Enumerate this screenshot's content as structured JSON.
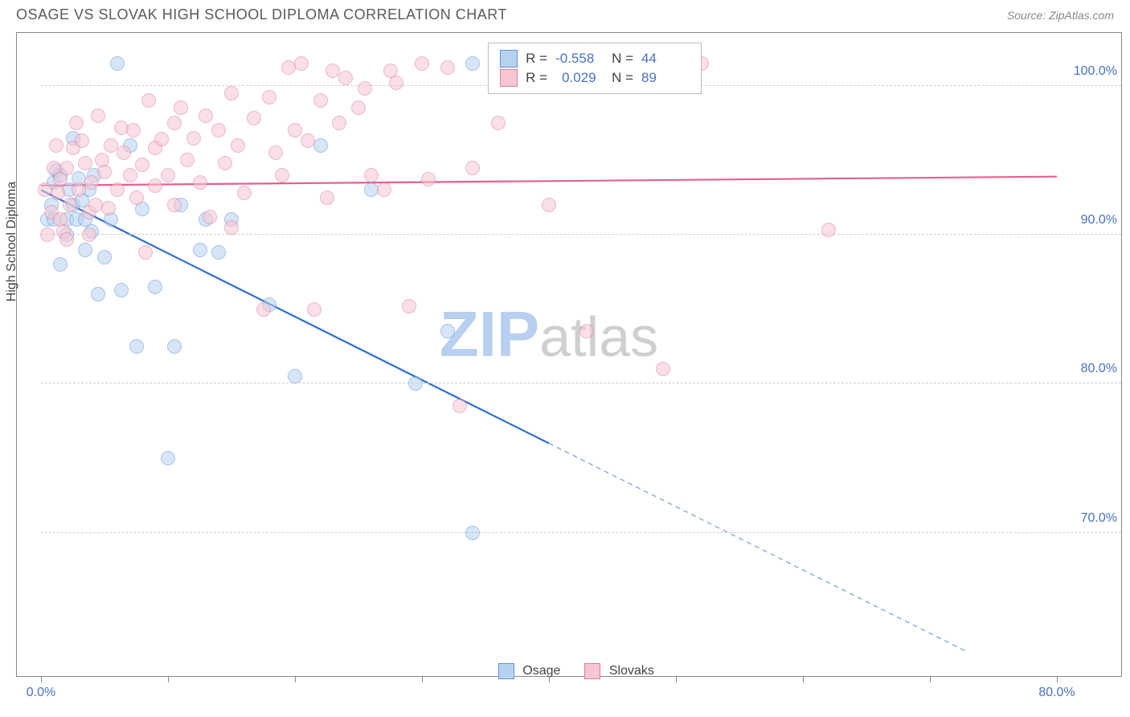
{
  "title": "OSAGE VS SLOVAK HIGH SCHOOL DIPLOMA CORRELATION CHART",
  "source": "Source: ZipAtlas.com",
  "ylabel": "High School Diploma",
  "watermark": {
    "part1": "ZIP",
    "part2": "atlas",
    "color1": "#b9cfef",
    "color2": "#cfcfcf"
  },
  "chart": {
    "type": "scatter",
    "xlim": [
      0,
      80
    ],
    "ylim": [
      62,
      103
    ],
    "xtick_positions": [
      0,
      10,
      20,
      30,
      40,
      50,
      60,
      70,
      80
    ],
    "xtick_labels_shown": {
      "0": "0.0%",
      "80": "80.0%"
    },
    "ytick_positions": [
      70,
      80,
      90,
      100
    ],
    "ytick_labels": {
      "70": "70.0%",
      "80": "80.0%",
      "90": "90.0%",
      "100": "100.0%"
    },
    "grid_color": "#cccccc",
    "background_color": "#ffffff",
    "border_color": "#888888",
    "marker_radius": 9,
    "marker_opacity": 0.55,
    "marker_stroke_width": 1.2,
    "series": [
      {
        "name": "Osage",
        "label": "Osage",
        "fill": "#b7d2f1",
        "stroke": "#5f93d6",
        "stats": {
          "R": "-0.558",
          "N": "44"
        },
        "trend": {
          "x1": 0,
          "y1": 93,
          "x2_solid": 40,
          "y2_solid": 76,
          "x2_dash": 80,
          "y2_dash": 59,
          "color": "#2f6fd0",
          "width": 2.2
        },
        "points": [
          [
            0.5,
            91
          ],
          [
            0.8,
            92
          ],
          [
            1,
            93.5
          ],
          [
            1,
            91
          ],
          [
            1.2,
            94.3
          ],
          [
            1.5,
            88
          ],
          [
            1.5,
            94
          ],
          [
            2,
            91
          ],
          [
            2,
            90
          ],
          [
            2.2,
            93
          ],
          [
            2.5,
            96.5
          ],
          [
            2.5,
            92
          ],
          [
            2.8,
            91
          ],
          [
            3,
            93.8
          ],
          [
            3.2,
            92.3
          ],
          [
            3.5,
            91
          ],
          [
            3.5,
            89
          ],
          [
            3.8,
            93
          ],
          [
            4,
            90.2
          ],
          [
            4.2,
            94
          ],
          [
            4.5,
            86
          ],
          [
            5,
            88.5
          ],
          [
            5.5,
            91
          ],
          [
            6,
            101.5
          ],
          [
            6.3,
            86.3
          ],
          [
            7,
            96
          ],
          [
            7.5,
            82.5
          ],
          [
            8,
            91.7
          ],
          [
            9,
            86.5
          ],
          [
            10,
            75
          ],
          [
            10.5,
            82.5
          ],
          [
            11,
            92
          ],
          [
            12.5,
            89
          ],
          [
            13,
            91
          ],
          [
            14,
            88.8
          ],
          [
            15,
            91
          ],
          [
            18,
            85.3
          ],
          [
            20,
            80.5
          ],
          [
            22,
            96
          ],
          [
            26,
            93
          ],
          [
            29.5,
            80
          ],
          [
            32,
            83.5
          ],
          [
            34,
            70
          ],
          [
            34,
            101.5
          ]
        ]
      },
      {
        "name": "Slovaks",
        "label": "Slovaks",
        "fill": "#f6c6d3",
        "stroke": "#e07d9d",
        "stats": {
          "R": "0.029",
          "N": "89"
        },
        "trend": {
          "x1": 0,
          "y1": 93.3,
          "x2_solid": 80,
          "y2_solid": 93.9,
          "color": "#e3628b",
          "width": 2.2
        },
        "points": [
          [
            0.3,
            93
          ],
          [
            0.5,
            90
          ],
          [
            0.8,
            91.5
          ],
          [
            1,
            94.5
          ],
          [
            1.2,
            96
          ],
          [
            1.3,
            92.8
          ],
          [
            1.5,
            91
          ],
          [
            1.5,
            93.7
          ],
          [
            1.8,
            90.2
          ],
          [
            2,
            94.5
          ],
          [
            2,
            89.7
          ],
          [
            2.3,
            92
          ],
          [
            2.5,
            95.8
          ],
          [
            2.8,
            97.5
          ],
          [
            3,
            93
          ],
          [
            3.2,
            96.3
          ],
          [
            3.5,
            94.8
          ],
          [
            3.8,
            91.5
          ],
          [
            3.8,
            90
          ],
          [
            4,
            93.5
          ],
          [
            4.3,
            92
          ],
          [
            4.5,
            98
          ],
          [
            4.8,
            95
          ],
          [
            5,
            94.2
          ],
          [
            5.3,
            91.8
          ],
          [
            5.5,
            96
          ],
          [
            6,
            93
          ],
          [
            6.3,
            97.2
          ],
          [
            6.5,
            95.5
          ],
          [
            7,
            94
          ],
          [
            7.3,
            97
          ],
          [
            7.5,
            92.5
          ],
          [
            8,
            94.7
          ],
          [
            8.2,
            88.8
          ],
          [
            8.5,
            99
          ],
          [
            9,
            95.8
          ],
          [
            9,
            93.3
          ],
          [
            9.5,
            96.4
          ],
          [
            10,
            94
          ],
          [
            10.5,
            97.5
          ],
          [
            10.5,
            92
          ],
          [
            11,
            98.5
          ],
          [
            11.5,
            95
          ],
          [
            12,
            96.5
          ],
          [
            12.5,
            93.5
          ],
          [
            13,
            98
          ],
          [
            13.3,
            91.2
          ],
          [
            14,
            97
          ],
          [
            14.5,
            94.8
          ],
          [
            15,
            99.5
          ],
          [
            15,
            90.5
          ],
          [
            15.5,
            96
          ],
          [
            16,
            92.8
          ],
          [
            16.8,
            97.8
          ],
          [
            17.5,
            85
          ],
          [
            18,
            99.2
          ],
          [
            18.5,
            95.5
          ],
          [
            19,
            94
          ],
          [
            19.5,
            101.2
          ],
          [
            20,
            97
          ],
          [
            20.5,
            101.5
          ],
          [
            21,
            96.3
          ],
          [
            21.5,
            85
          ],
          [
            22,
            99
          ],
          [
            22.5,
            92.5
          ],
          [
            23,
            101
          ],
          [
            23.5,
            97.5
          ],
          [
            24,
            100.5
          ],
          [
            25,
            98.5
          ],
          [
            25.5,
            99.8
          ],
          [
            26,
            94
          ],
          [
            27,
            93
          ],
          [
            27.5,
            101
          ],
          [
            28,
            100.2
          ],
          [
            29,
            85.2
          ],
          [
            30,
            101.5
          ],
          [
            30.5,
            93.7
          ],
          [
            32,
            101.2
          ],
          [
            33,
            78.5
          ],
          [
            34,
            94.5
          ],
          [
            36,
            97.5
          ],
          [
            38,
            101.4
          ],
          [
            40,
            92
          ],
          [
            43,
            83.5
          ],
          [
            45,
            101.5
          ],
          [
            49,
            81
          ],
          [
            51,
            101.5
          ],
          [
            52,
            101.5
          ],
          [
            62,
            90.3
          ]
        ]
      }
    ]
  }
}
